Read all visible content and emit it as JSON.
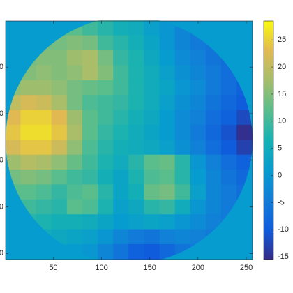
{
  "chart_data": {
    "type": "heatmap",
    "x": [
      8,
      24,
      40,
      56,
      72,
      88,
      104,
      120,
      136,
      152,
      168,
      184,
      200,
      216,
      232,
      248
    ],
    "y": [
      8,
      24,
      40,
      56,
      72,
      88,
      104,
      120,
      136,
      152,
      168,
      184,
      200,
      216,
      232,
      248
    ],
    "z": [
      [
        10,
        10,
        12,
        12,
        12,
        10,
        8,
        6,
        5,
        2,
        0,
        -3,
        -5,
        -6,
        -6,
        -6
      ],
      [
        12,
        12,
        14,
        14,
        15,
        14,
        10,
        8,
        6,
        3,
        0,
        -3,
        -5,
        -6,
        -7,
        -7
      ],
      [
        13,
        14,
        15,
        15,
        17,
        18,
        14,
        9,
        7,
        4,
        1,
        -2,
        -4,
        -6,
        -7,
        -8
      ],
      [
        14,
        15,
        16,
        15,
        16,
        18,
        15,
        10,
        7,
        5,
        2,
        -1,
        -3,
        -5,
        -7,
        -8
      ],
      [
        16,
        17,
        17,
        16,
        14,
        13,
        12,
        10,
        7,
        5,
        3,
        0,
        -2,
        -5,
        -7,
        -9
      ],
      [
        20,
        22,
        21,
        18,
        14,
        11,
        10,
        9,
        7,
        5,
        2,
        -1,
        -3,
        -6,
        -8,
        -10
      ],
      [
        23,
        25,
        25,
        23,
        17,
        12,
        10,
        8,
        6,
        4,
        1,
        -2,
        -4,
        -7,
        -9,
        -12
      ],
      [
        24,
        26,
        26,
        24,
        18,
        12,
        9,
        7,
        5,
        3,
        1,
        -2,
        -5,
        -8,
        -11,
        -15
      ],
      [
        22,
        24,
        24,
        21,
        16,
        11,
        8,
        6,
        5,
        4,
        2,
        -1,
        -4,
        -7,
        -10,
        -13
      ],
      [
        17,
        19,
        18,
        16,
        13,
        10,
        7,
        5,
        8,
        12,
        13,
        8,
        0,
        -4,
        -7,
        -9
      ],
      [
        14,
        15,
        14,
        12,
        10,
        9,
        6,
        3,
        7,
        11,
        12,
        8,
        1,
        -3,
        -6,
        -8
      ],
      [
        12,
        12,
        11,
        9,
        11,
        12,
        8,
        3,
        6,
        13,
        14,
        10,
        2,
        -3,
        -5,
        -7
      ],
      [
        10,
        10,
        9,
        8,
        12,
        11,
        7,
        2,
        4,
        8,
        9,
        5,
        0,
        -3,
        -5,
        -6
      ],
      [
        8,
        8,
        7,
        6,
        6,
        5,
        3,
        1,
        2,
        3,
        2,
        0,
        -2,
        -4,
        -5,
        -6
      ],
      [
        6,
        6,
        5,
        4,
        3,
        2,
        0,
        -3,
        -5,
        -6,
        -4,
        -3,
        -4,
        -5,
        -5,
        -5
      ],
      [
        4,
        4,
        3,
        2,
        1,
        0,
        -3,
        -6,
        -9,
        -10,
        -8,
        -6,
        -5,
        -5,
        -5,
        -5
      ]
    ],
    "background_value": 1,
    "xlim": [
      0.5,
      256.5
    ],
    "ylim": [
      0.5,
      256.5
    ],
    "y_reversed": true,
    "xticks": [
      50,
      100,
      150,
      200,
      250
    ],
    "yticks": [
      50,
      100,
      150,
      200,
      250
    ],
    "clim": [
      -15.5,
      28.5
    ],
    "cticks": [
      -15,
      -10,
      -5,
      0,
      5,
      10,
      15,
      20,
      25
    ],
    "colormap": "parula"
  }
}
